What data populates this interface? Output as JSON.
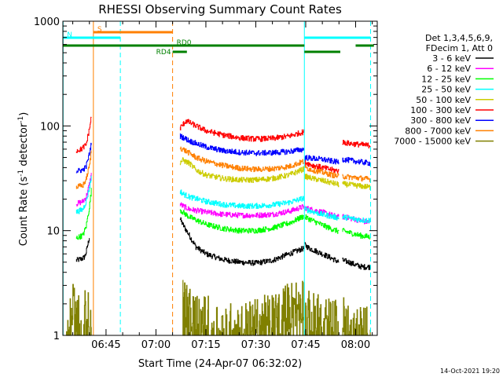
{
  "chart_data": {
    "type": "line",
    "title": "RHESSI Observing Summary Count Rates",
    "xlabel": "Start Time (24-Apr-07 06:32:02)",
    "ylabel_main": "Count Rate (s",
    "ylabel_sup1": "-1",
    "ylabel_mid": " detector",
    "ylabel_sup2": "-1",
    "ylabel_end": ")",
    "x_ticks": [
      {
        "min": 45,
        "label": "06:45"
      },
      {
        "min": 60,
        "label": "07:00"
      },
      {
        "min": 75,
        "label": "07:15"
      },
      {
        "min": 90,
        "label": "07:30"
      },
      {
        "min": 105,
        "label": "07:45"
      },
      {
        "min": 120,
        "label": "08:00"
      }
    ],
    "x_range_minutes": [
      32.03,
      126.5
    ],
    "y_ticks": [
      {
        "v": 1,
        "label": "1"
      },
      {
        "v": 10,
        "label": "10"
      },
      {
        "v": 100,
        "label": "100"
      },
      {
        "v": 1000,
        "label": "1000"
      }
    ],
    "y_range": [
      1,
      1000
    ],
    "y_scale": "log",
    "legend_header": [
      "Det 1,3,4,5,6,9,",
      "FDecim 1, Att 0"
    ],
    "legend_placement": "right",
    "series": [
      {
        "name": "3 - 6 keV",
        "color": "#000000",
        "segments": [
          {
            "t": [
              36,
              37.8,
              38.5,
              39,
              40
            ],
            "v": [
              5.2,
              5.4,
              5.6,
              6.2,
              8.8
            ]
          },
          {
            "t": [
              67.2,
              68,
              70,
              72,
              75,
              80,
              85,
              90,
              95,
              100,
              104.5
            ],
            "v": [
              13,
              11.5,
              9,
              7,
              6,
              5.3,
              5,
              4.9,
              5.2,
              6,
              6.8
            ]
          },
          {
            "t": [
              104.7,
              106,
              110,
              113,
              115
            ],
            "v": [
              7.3,
              6.8,
              6,
              5.4,
              5
            ]
          },
          {
            "t": [
              116,
              118,
              120,
              122,
              124.5
            ],
            "v": [
              5.2,
              5,
              4.7,
              4.5,
              4.5
            ]
          }
        ]
      },
      {
        "name": "6 - 12 keV",
        "color": "#ff00ff",
        "segments": [
          {
            "t": [
              36,
              38,
              39,
              40,
              40.6
            ],
            "v": [
              18,
              19,
              21,
              28,
              35
            ]
          },
          {
            "t": [
              67.2,
              68,
              70,
              75,
              80,
              85,
              90,
              95,
              100,
              104.5
            ],
            "v": [
              18,
              17.2,
              16,
              15,
              14.3,
              14,
              14,
              14.3,
              15.3,
              17
            ]
          },
          {
            "t": [
              104.7,
              107,
              110,
              113,
              115
            ],
            "v": [
              16.5,
              15.8,
              15,
              14,
              13.4
            ]
          },
          {
            "t": [
              116,
              118,
              120,
              122,
              124.5
            ],
            "v": [
              13.6,
              13.2,
              12.8,
              12.3,
              12
            ]
          }
        ]
      },
      {
        "name": "12 - 25 keV",
        "color": "#00ff00",
        "segments": [
          {
            "t": [
              36,
              38,
              39,
              40,
              40.6
            ],
            "v": [
              8.5,
              9,
              11,
              17,
              25
            ]
          },
          {
            "t": [
              67.2,
              68,
              70,
              75,
              80,
              85,
              90,
              95,
              100,
              104.5
            ],
            "v": [
              16,
              15,
              13.5,
              11.5,
              10.5,
              10,
              10,
              10.6,
              11.8,
              13.8
            ]
          },
          {
            "t": [
              104.7,
              107,
              110,
              113,
              115
            ],
            "v": [
              13.5,
              12.5,
              11.3,
              10.3,
              9.8
            ]
          },
          {
            "t": [
              116,
              118,
              120,
              122,
              124.5
            ],
            "v": [
              10,
              9.6,
              9.2,
              8.9,
              8.7
            ]
          }
        ]
      },
      {
        "name": "25 - 50 keV",
        "color": "#00ffff",
        "segments": [
          {
            "t": [
              36,
              38,
              39,
              40,
              40.6
            ],
            "v": [
              15,
              16,
              19,
              26,
              33
            ]
          },
          {
            "t": [
              67.2,
              68,
              70,
              75,
              80,
              85,
              90,
              95,
              100,
              104.5
            ],
            "v": [
              24,
              22.5,
              21,
              19,
              17.8,
              17.2,
              17.2,
              17.6,
              18.6,
              20.5
            ]
          },
          {
            "t": [
              104.7,
              107,
              110,
              113,
              115
            ],
            "v": [
              16,
              15.2,
              14.3,
              13.6,
              13.2
            ]
          },
          {
            "t": [
              116,
              118,
              120,
              122,
              124.5
            ],
            "v": [
              13.5,
              13.2,
              12.9,
              12.6,
              12.5
            ]
          }
        ]
      },
      {
        "name": "50 - 100 keV",
        "color": "#cccc00",
        "segments": [
          {
            "t": [
              67.2,
              68,
              70,
              72,
              75,
              80,
              85,
              90,
              95,
              100,
              104.5
            ],
            "v": [
              45,
              47,
              44,
              38,
              34,
              31.5,
              30.5,
              30.5,
              31.5,
              34,
              39
            ]
          },
          {
            "t": [
              104.7,
              107,
              110,
              113,
              115
            ],
            "v": [
              33,
              31.5,
              30,
              28.5,
              27.5
            ]
          },
          {
            "t": [
              116,
              118,
              120,
              122,
              124.5
            ],
            "v": [
              28,
              27.5,
              27,
              26.5,
              26
            ]
          }
        ]
      },
      {
        "name": "100 - 300 keV",
        "color": "#ff0000",
        "segments": [
          {
            "t": [
              36,
              37.5,
              39,
              40,
              40.6
            ],
            "v": [
              58,
              60,
              66,
              95,
              125
            ]
          },
          {
            "t": [
              67.2,
              69,
              70,
              72,
              75,
              80,
              85,
              90,
              95,
              100,
              104.5
            ],
            "v": [
              95,
              112,
              108,
              100,
              90,
              82,
              77,
              75,
              76,
              80,
              88
            ]
          },
          {
            "t": [
              104.7,
              107,
              110,
              113,
              115
            ],
            "v": [
              45,
              42,
              40,
              38,
              37
            ]
          },
          {
            "t": [
              116,
              118,
              120,
              122,
              124.5
            ],
            "v": [
              70,
              68,
              67,
              66,
              65
            ]
          }
        ]
      },
      {
        "name": "300 - 800 keV",
        "color": "#0000ff",
        "segments": [
          {
            "t": [
              36,
              38,
              39,
              40,
              40.6
            ],
            "v": [
              37,
              38,
              41,
              55,
              70
            ]
          },
          {
            "t": [
              67.2,
              68,
              70,
              72,
              75,
              80,
              85,
              90,
              95,
              100,
              104.5
            ],
            "v": [
              80,
              78,
              72,
              68,
              63,
              58,
              56,
              55,
              55.5,
              57,
              60
            ]
          },
          {
            "t": [
              104.7,
              107,
              110,
              113,
              115
            ],
            "v": [
              50,
              49,
              48,
              46,
              45
            ]
          },
          {
            "t": [
              116,
              118,
              120,
              122,
              124.5
            ],
            "v": [
              48,
              47,
              46,
              45,
              44
            ]
          }
        ]
      },
      {
        "name": "800 - 7000 keV",
        "color": "#ff8000",
        "segments": [
          {
            "t": [
              36,
              38,
              39,
              40,
              40.6
            ],
            "v": [
              26,
              27,
              31,
              42,
              58
            ]
          },
          {
            "t": [
              67.2,
              68,
              70,
              72,
              75,
              80,
              85,
              90,
              95,
              100,
              104.5
            ],
            "v": [
              62,
              60,
              55,
              50,
              46,
              42,
              39.5,
              38.5,
              39,
              41,
              46
            ]
          },
          {
            "t": [
              104.7,
              107,
              110,
              113,
              115
            ],
            "v": [
              40,
              38,
              36,
              34,
              33
            ]
          },
          {
            "t": [
              116,
              118,
              120,
              122,
              124.5
            ],
            "v": [
              33,
              32.5,
              32,
              31.5,
              31
            ]
          }
        ]
      },
      {
        "name": "7000 - 15000 keV",
        "color": "#808000",
        "segments": [
          {
            "t": [
              33,
              35,
              37,
              39.5,
              40.6
            ],
            "v": [
              1.4,
              2.1,
              1.3,
              1.8,
              1.1
            ]
          },
          {
            "t": [
              68,
              70,
              72,
              75,
              80,
              85,
              90,
              95,
              100,
              104.5
            ],
            "v": [
              2.3,
              1.6,
              1.5,
              1.4,
              1.2,
              1.2,
              1.3,
              1.5,
              1.9,
              2.2
            ]
          },
          {
            "t": [
              104.7,
              107,
              110,
              113,
              115
            ],
            "v": [
              1.6,
              1.5,
              1.4,
              1.3,
              1.3
            ]
          },
          {
            "t": [
              116,
              118,
              120,
              122,
              124.5
            ],
            "v": [
              1.4,
              1.3,
              1.3,
              1.2,
              1.2
            ]
          }
        ]
      }
    ],
    "vertical_lines": [
      {
        "t": 32.1,
        "color": "#00ffff",
        "style": "solid"
      },
      {
        "t": 41.2,
        "color": "#ff8000",
        "style": "solid"
      },
      {
        "t": 49.3,
        "color": "#00ffff",
        "style": "dashed"
      },
      {
        "t": 65.0,
        "color": "#ff8000",
        "style": "dashed"
      },
      {
        "t": 104.6,
        "color": "#00ffff",
        "style": "solid"
      },
      {
        "t": 124.5,
        "color": "#00ffff",
        "style": "dashed"
      }
    ],
    "status_bars": [
      {
        "label": "S",
        "color": "#ff8000",
        "t_start": 41.2,
        "t_end": 65.0
      },
      {
        "label": "N",
        "color": "#00ffff",
        "t_start": 32.1,
        "t_end": 49.3
      },
      {
        "label": "",
        "color": "#00ffff",
        "t_start": 104.6,
        "t_end": 124.5
      },
      {
        "label": "RD0",
        "color": "#008000",
        "t_start": 65.0,
        "t_end": 104.6
      },
      {
        "label": "",
        "color": "#008000",
        "t_start": 32.1,
        "t_end": 65.0
      },
      {
        "label": "RD4",
        "color": "#008000",
        "t_start": 65.0,
        "t_end": 69.3
      },
      {
        "label": "",
        "color": "#008000",
        "t_start": 104.6,
        "t_end": 115.4
      },
      {
        "label": "",
        "color": "#008000",
        "t_start": 120.0,
        "t_end": 125.5
      }
    ],
    "footer_date": "14-Oct-2021 19:20"
  }
}
